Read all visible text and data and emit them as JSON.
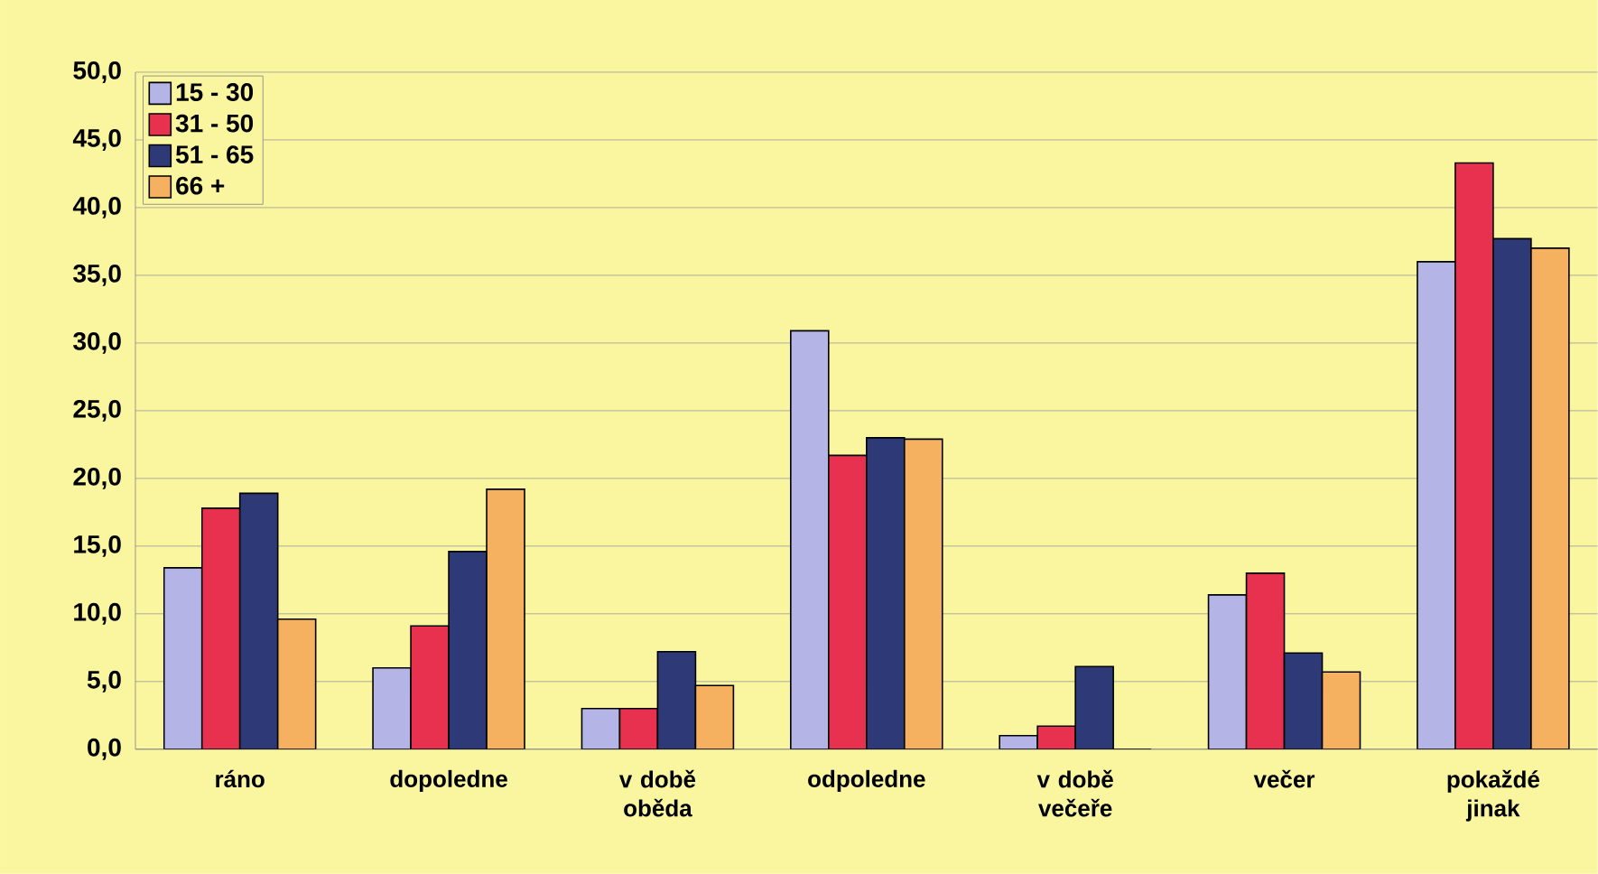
{
  "chart_data": {
    "type": "bar",
    "categories": [
      "ráno",
      "dopoledne",
      "v době oběda",
      "odpoledne",
      "v době večeře",
      "večer",
      "pokaždé jinak"
    ],
    "series": [
      {
        "name": "15 - 30",
        "color": "#b4b4e6",
        "values": [
          13.4,
          6.0,
          3.0,
          30.9,
          1.0,
          11.4,
          36.0
        ]
      },
      {
        "name": "31 - 50",
        "color": "#e8304f",
        "values": [
          17.8,
          9.1,
          3.0,
          21.7,
          1.7,
          13.0,
          43.3
        ]
      },
      {
        "name": "51 - 65",
        "color": "#2e3a78",
        "values": [
          18.9,
          14.6,
          7.2,
          23.0,
          6.1,
          7.1,
          37.7
        ]
      },
      {
        "name": "66 +",
        "color": "#f5b060",
        "values": [
          9.6,
          19.2,
          4.7,
          22.9,
          0,
          5.7,
          37.0
        ]
      }
    ],
    "ylim": [
      0,
      50
    ],
    "yticks": [
      {
        "value": 0,
        "label": "0,0"
      },
      {
        "value": 5,
        "label": "5,0"
      },
      {
        "value": 10,
        "label": "10,0"
      },
      {
        "value": 15,
        "label": "15,0"
      },
      {
        "value": 20,
        "label": "20,0"
      },
      {
        "value": 25,
        "label": "25,0"
      },
      {
        "value": 30,
        "label": "30,0"
      },
      {
        "value": 35,
        "label": "35,0"
      },
      {
        "value": 40,
        "label": "40,0"
      },
      {
        "value": 45,
        "label": "45,0"
      },
      {
        "value": 50,
        "label": "50,0"
      }
    ],
    "grid": "y",
    "legend": "top left"
  }
}
